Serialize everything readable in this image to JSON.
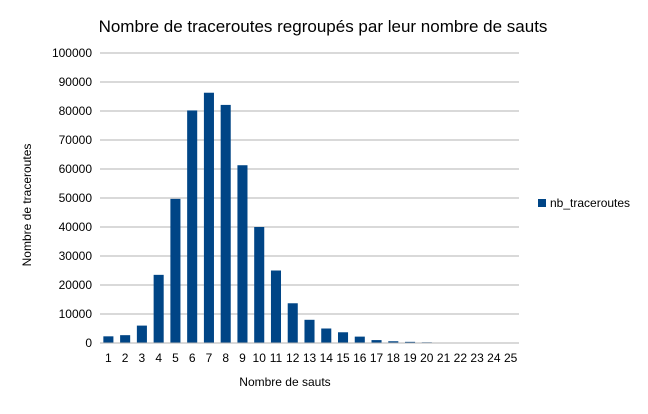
{
  "chart_data": {
    "type": "bar",
    "title": "Nombre de traceroutes regroupés par leur nombre de sauts",
    "xlabel": "Nombre de sauts",
    "ylabel": "Nombre de traceroutes",
    "categories": [
      "1",
      "2",
      "3",
      "4",
      "5",
      "6",
      "7",
      "8",
      "9",
      "10",
      "11",
      "12",
      "13",
      "14",
      "15",
      "16",
      "17",
      "18",
      "19",
      "20",
      "21",
      "22",
      "23",
      "24",
      "25"
    ],
    "series": [
      {
        "name": "nb_traceroutes",
        "values": [
          2300,
          2700,
          6000,
          23500,
          49700,
          80200,
          86300,
          82100,
          61300,
          40000,
          25000,
          13700,
          8000,
          5000,
          3700,
          2200,
          1000,
          600,
          400,
          250,
          150,
          100,
          50,
          50,
          30
        ]
      }
    ],
    "ylim": [
      0,
      100000
    ],
    "yticks": [
      "0",
      "10000",
      "20000",
      "30000",
      "40000",
      "50000",
      "60000",
      "70000",
      "80000",
      "90000",
      "100000"
    ],
    "grid": "horizontal",
    "legend_position": "right",
    "bar_color": "#004586"
  }
}
